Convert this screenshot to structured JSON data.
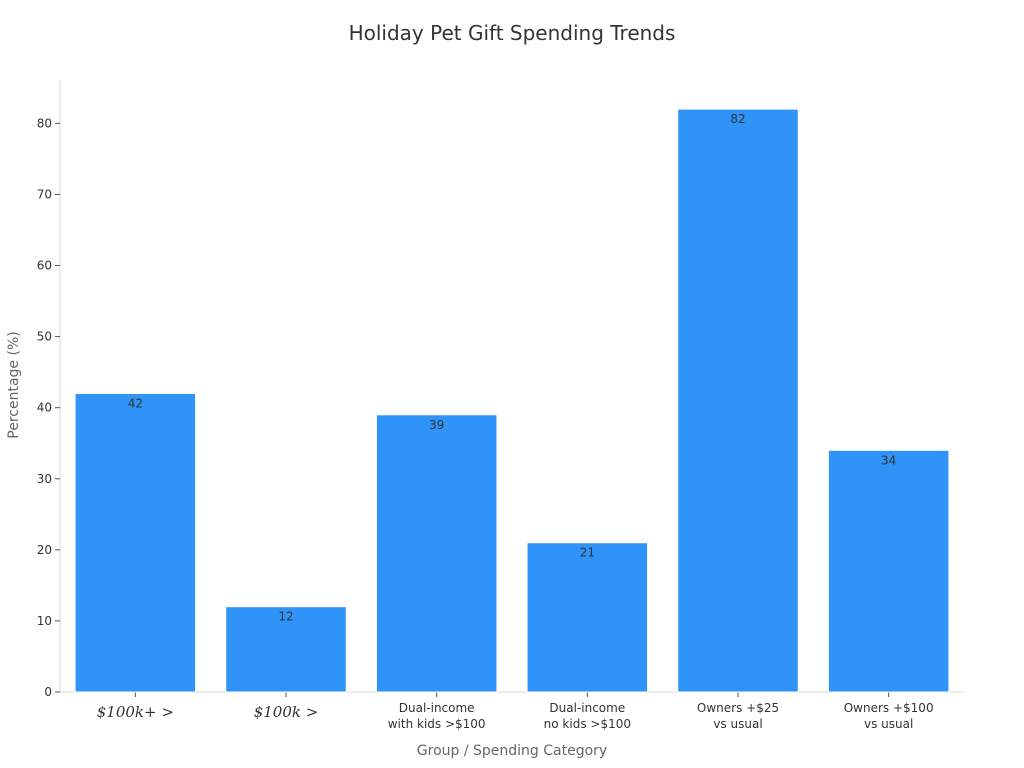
{
  "chart_data": {
    "type": "bar",
    "title": "Holiday Pet Gift Spending Trends",
    "xlabel": "Group / Spending Category",
    "ylabel": "Percentage (%)",
    "categories": [
      [
        "$100k+ >"
      ],
      [
        "$100k >"
      ],
      [
        "Dual-income",
        "with kids >$100"
      ],
      [
        "Dual-income",
        "no kids >$100"
      ],
      [
        "Owners +$25",
        "vs usual"
      ],
      [
        "Owners +$100",
        "vs usual"
      ]
    ],
    "values": [
      42,
      12,
      39,
      21,
      82,
      34
    ],
    "ylim": [
      0,
      86.1
    ],
    "yticks": [
      0,
      10,
      20,
      30,
      40,
      50,
      60,
      70,
      80
    ],
    "bar_color": "#2f93f7",
    "grid": false,
    "legend": "none"
  }
}
